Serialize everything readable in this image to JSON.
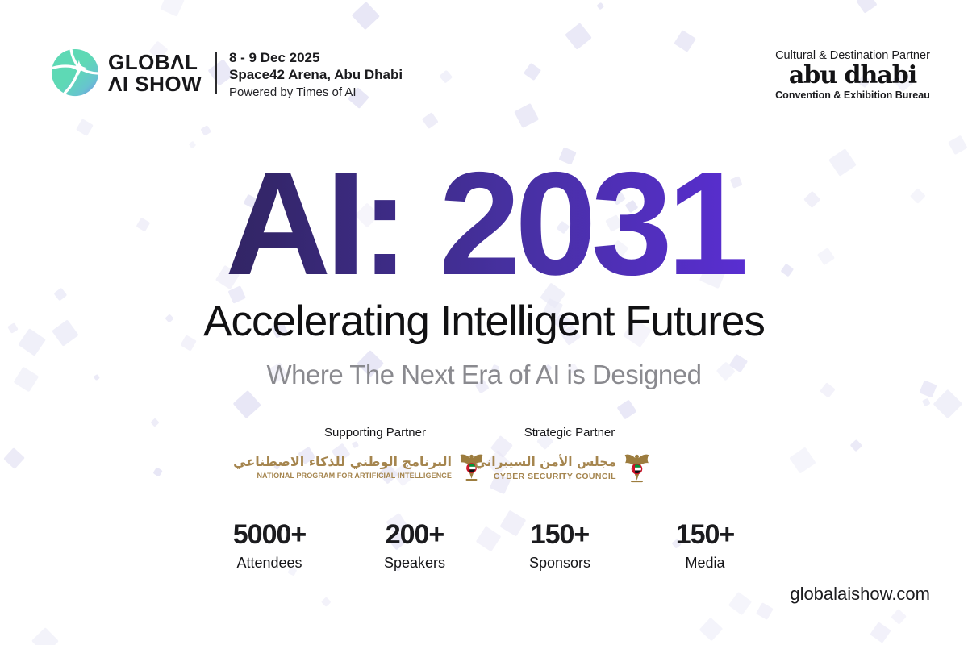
{
  "header": {
    "logo": {
      "line1": "GLOBΛL",
      "line2": "ΛI SHOW"
    },
    "event": {
      "date": "8 - 9 Dec 2025",
      "venue": "Space42 Arena, Abu Dhabi",
      "powered_by": "Powered by Times of AI"
    },
    "cultural_partner": {
      "label": "Cultural & Destination Partner",
      "name": "abu dhabi",
      "subtitle": "Convention & Exhibition Bureau"
    }
  },
  "hero": {
    "title": "AI: 2031",
    "subtitle": "Accelerating Intelligent Futures",
    "tagline": "Where The Next Era of AI is Designed"
  },
  "partners": [
    {
      "label": "Supporting Partner",
      "arabic": "البرنامج الوطني للذكاء الاصطناعي",
      "english": "NATIONAL PROGRAM FOR ARTIFICIAL INTELLIGENCE"
    },
    {
      "label": "Strategic Partner",
      "arabic": "مجلس الأمن السيبراني",
      "english": "CYBER SECURITY COUNCIL"
    }
  ],
  "stats": [
    {
      "value": "5000+",
      "label": "Attendees"
    },
    {
      "value": "200+",
      "label": "Speakers"
    },
    {
      "value": "150+",
      "label": "Sponsors"
    },
    {
      "value": "150+",
      "label": "Media"
    }
  ],
  "footer": {
    "website": "globalaishow.com"
  },
  "colors": {
    "title_gradient_start": "#2a2045",
    "title_gradient_end": "#6228e8",
    "tagline_gray": "#8a8a8f",
    "partner_gold": "#a5854e",
    "logo_teal": "#5ed9b5",
    "logo_blue": "#7c85ee",
    "confetti_lavender": "#e8e7f6",
    "uae_red": "#ce1126",
    "uae_green": "#009639"
  }
}
